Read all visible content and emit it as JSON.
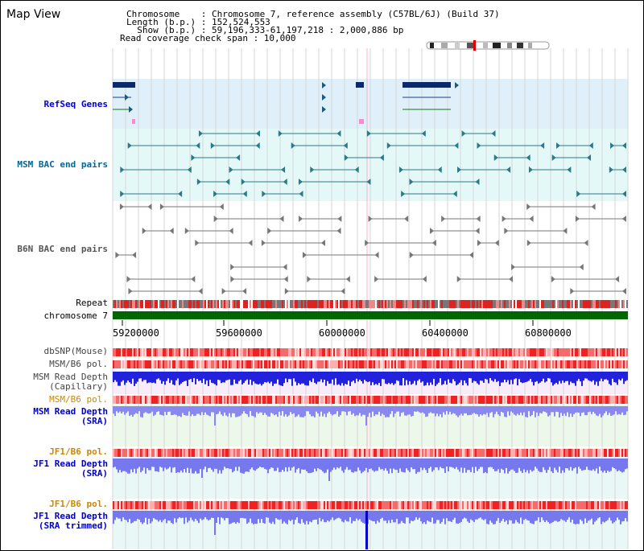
{
  "header": {
    "title": "Map View",
    "info_lines": [
      "Chromosome    : Chromosome 7, reference assembly (C57BL/6J) (Build 37)",
      "Length (b.p.) : 152,524,553",
      "  Show (b.p.) : 59,196,333-61,197,218 : 2,000,886 bp",
      "Read coverage check span : 10,000"
    ]
  },
  "tracks": {
    "refseq": "RefSeq Genes",
    "msm_bac": "MSM BAC end pairs",
    "b6n_bac": "B6N BAC end pairs",
    "repeat": "Repeat",
    "chromosome": "chromosome 7",
    "dbsnp": "dbSNP(Mouse)",
    "msm_b6_pol_1": "MSM/B6 pol.",
    "msm_read_depth_cap": "MSM Read Depth\n(Capillary)",
    "msm_b6_pol_2": "MSM/B6 pol.",
    "msm_read_depth_sra": "MSM Read Depth\n(SRA)",
    "jf1_b6_pol_1": "JF1/B6 pol.",
    "jf1_read_depth_sra": "JF1 Read Depth\n(SRA)",
    "jf1_b6_pol_2": "JF1/B6 pol.",
    "jf1_read_depth_trimmed": "JF1 Read Depth\n(SRA trimmed)"
  },
  "axis": {
    "ticks": [
      "59200000",
      "59600000",
      "60000000",
      "60400000",
      "60800000"
    ]
  },
  "colors": {
    "label_blue": "#0000cc",
    "label_teal": "#006699",
    "label_gray": "#555555",
    "label_orange": "#cc8800",
    "refseq_bg": "#dff0fa",
    "msm_bg": "#e4f8f8",
    "chromosome_bar": "#006600"
  }
}
